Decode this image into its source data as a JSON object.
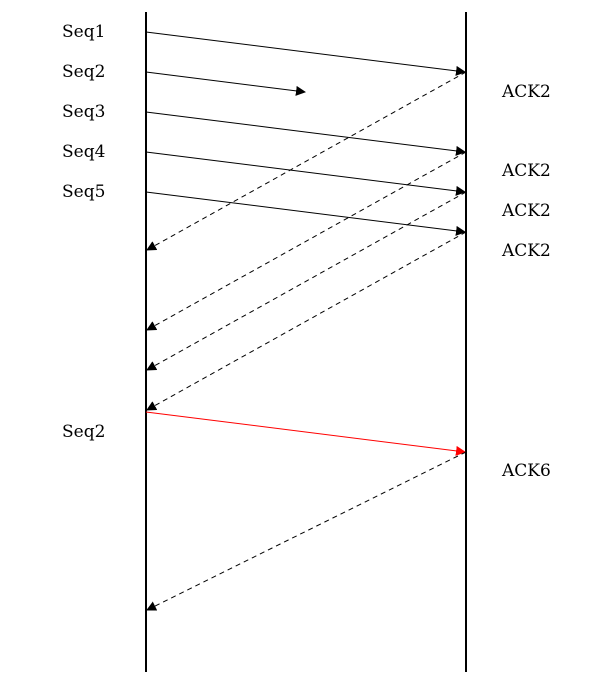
{
  "sender_labels": [
    "Seq1",
    "Seq2",
    "Seq3",
    "Seq4",
    "Seq5",
    "Seq2"
  ],
  "receiver_labels": [
    "ACK2",
    "ACK2",
    "ACK2",
    "ACK2",
    "ACK6"
  ],
  "colors": {
    "line": "#000000",
    "retransmission": "#ff0000"
  }
}
